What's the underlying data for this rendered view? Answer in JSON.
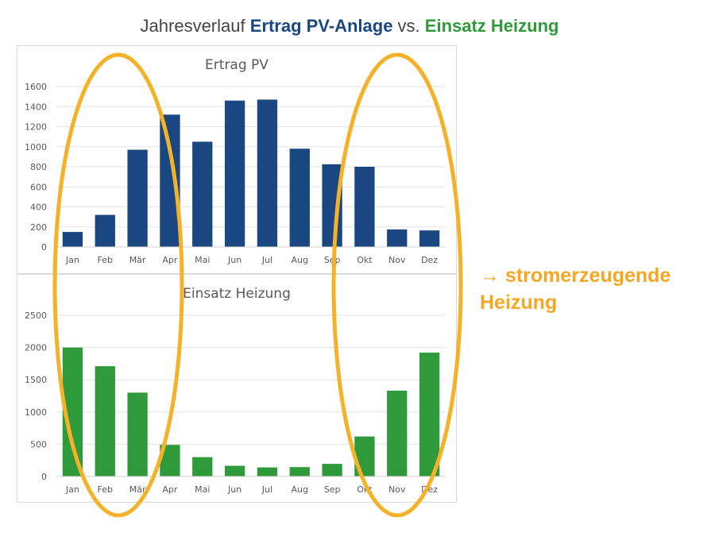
{
  "title": {
    "prefix": "Jahresverlauf ",
    "pv_part": "Ertrag PV-Anlage",
    "middle": " vs. ",
    "heat_part": "Einsatz Heizung"
  },
  "callout": {
    "line1": "→ stromerzeugende",
    "line2": "Heizung"
  },
  "colors": {
    "pv": "#1a4781",
    "heat": "#2f9a3a",
    "highlight": "#f5b127",
    "title_text": "#444444"
  },
  "chart_data": [
    {
      "type": "bar",
      "title": "Ertrag PV",
      "categories": [
        "Jan",
        "Feb",
        "Mär",
        "Apr",
        "Mai",
        "Jun",
        "Jul",
        "Aug",
        "Sep",
        "Okt",
        "Nov",
        "Dez"
      ],
      "values": [
        150,
        320,
        970,
        1320,
        1050,
        1460,
        1470,
        980,
        825,
        800,
        175,
        165
      ],
      "ylim": [
        0,
        1600
      ],
      "yticks": [
        0,
        200,
        400,
        600,
        800,
        1000,
        1200,
        1400,
        1600
      ],
      "grid": true,
      "color": "#1a4781"
    },
    {
      "type": "bar",
      "title": "Einsatz Heizung",
      "categories": [
        "Jan",
        "Feb",
        "Mär",
        "Apr",
        "Mai",
        "Jun",
        "Jul",
        "Aug",
        "Sep",
        "Okt",
        "Nov",
        "Dez"
      ],
      "values": [
        2000,
        1710,
        1300,
        490,
        300,
        165,
        140,
        145,
        195,
        620,
        1330,
        1920
      ],
      "ylim": [
        0,
        2500
      ],
      "yticks": [
        0,
        500,
        1000,
        1500,
        2000,
        2500
      ],
      "grid": true,
      "color": "#2f9a3a"
    }
  ]
}
